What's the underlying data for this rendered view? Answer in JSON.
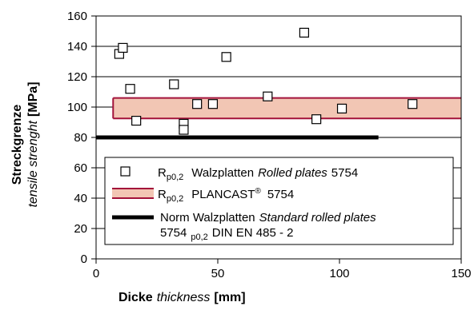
{
  "chart_data": {
    "type": "scatter",
    "xlabel": {
      "bold": "Dicke",
      "italic": "thickness",
      "unit": "[mm]"
    },
    "ylabel": {
      "bold": "Streckgrenze",
      "italic": "tensile strenght",
      "unit": "[MPa]"
    },
    "xlim": [
      0,
      150
    ],
    "ylim": [
      0,
      160
    ],
    "x_ticks": [
      "0",
      "50",
      "100",
      "150"
    ],
    "y_ticks": [
      "0",
      "20",
      "40",
      "60",
      "80",
      "100",
      "120",
      "140",
      "160"
    ],
    "grid": "horizontal",
    "series": [
      {
        "kind": "markers",
        "marker": "open-square",
        "points": [
          {
            "x": 9.5,
            "y": 135
          },
          {
            "x": 11,
            "y": 139
          },
          {
            "x": 14,
            "y": 112
          },
          {
            "x": 16.5,
            "y": 91
          },
          {
            "x": 32,
            "y": 115
          },
          {
            "x": 36,
            "y": 89
          },
          {
            "x": 36,
            "y": 85
          },
          {
            "x": 41.5,
            "y": 102
          },
          {
            "x": 48,
            "y": 102
          },
          {
            "x": 53.5,
            "y": 133
          },
          {
            "x": 70.5,
            "y": 107
          },
          {
            "x": 85.5,
            "y": 149
          },
          {
            "x": 90.5,
            "y": 92
          },
          {
            "x": 101,
            "y": 99
          },
          {
            "x": 130,
            "y": 102
          }
        ]
      },
      {
        "kind": "band",
        "x_range": [
          7,
          150
        ],
        "y_range": [
          92.5,
          106
        ],
        "fill": "#f2c6b4",
        "stroke": "#a3123a"
      },
      {
        "kind": "line",
        "x_range": [
          0,
          116
        ],
        "y": 80,
        "color": "#000000"
      }
    ],
    "legend": {
      "placement": "inside-lower-center",
      "entries": [
        {
          "symbol": "open-square",
          "main": "R",
          "sub": "p0,2",
          "text": "Walzplatten",
          "italic": "Rolled plates",
          "after": "5754"
        },
        {
          "symbol": "band",
          "main": "R",
          "sub": "p0,2",
          "text": "PLANCAST",
          "sup": "®",
          "after": "5754"
        },
        {
          "symbol": "thick-line",
          "line1_text": "Norm Walzplatten",
          "line1_italic": "Standard rolled plates",
          "line2_pre": "5754",
          "line2_sub": "p0,2",
          "line2_post": "DIN EN 485 - 2"
        }
      ]
    }
  }
}
